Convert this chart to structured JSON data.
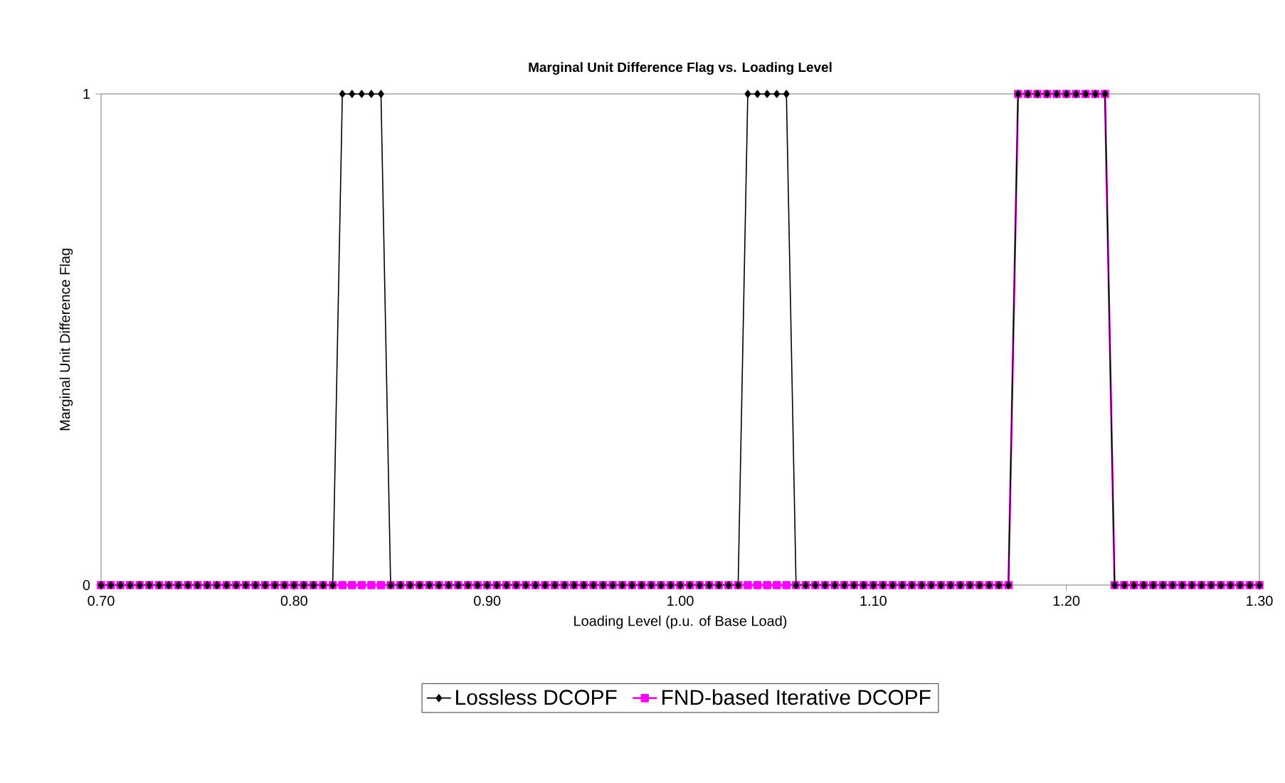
{
  "chart_data": {
    "type": "line",
    "title": "Marginal Unit Difference Flag vs. Loading Level",
    "xlabel": "Loading Level (p.u. of Base Load)",
    "ylabel": "Marginal Unit Difference Flag",
    "x": [
      0.7,
      0.705,
      0.71,
      0.715,
      0.72,
      0.725,
      0.73,
      0.735,
      0.74,
      0.745,
      0.75,
      0.755,
      0.76,
      0.765,
      0.77,
      0.775,
      0.78,
      0.785,
      0.79,
      0.795,
      0.8,
      0.805,
      0.81,
      0.815,
      0.82,
      0.825,
      0.83,
      0.835,
      0.84,
      0.845,
      0.85,
      0.855,
      0.86,
      0.865,
      0.87,
      0.875,
      0.88,
      0.885,
      0.89,
      0.895,
      0.9,
      0.905,
      0.91,
      0.915,
      0.92,
      0.925,
      0.93,
      0.935,
      0.94,
      0.945,
      0.95,
      0.955,
      0.96,
      0.965,
      0.97,
      0.975,
      0.98,
      0.985,
      0.99,
      0.995,
      1.0,
      1.005,
      1.01,
      1.015,
      1.02,
      1.025,
      1.03,
      1.035,
      1.04,
      1.045,
      1.05,
      1.055,
      1.06,
      1.065,
      1.07,
      1.075,
      1.08,
      1.085,
      1.09,
      1.095,
      1.1,
      1.105,
      1.11,
      1.115,
      1.12,
      1.125,
      1.13,
      1.135,
      1.14,
      1.145,
      1.15,
      1.155,
      1.16,
      1.165,
      1.17,
      1.175,
      1.18,
      1.185,
      1.19,
      1.195,
      1.2,
      1.205,
      1.21,
      1.215,
      1.22,
      1.225,
      1.23,
      1.235,
      1.24,
      1.245,
      1.25,
      1.255,
      1.26,
      1.265,
      1.27,
      1.275,
      1.28,
      1.285,
      1.29,
      1.295,
      1.3
    ],
    "series": [
      {
        "name": "Lossless DCOPF",
        "color": "#000000",
        "marker": "diamond",
        "values": [
          0,
          0,
          0,
          0,
          0,
          0,
          0,
          0,
          0,
          0,
          0,
          0,
          0,
          0,
          0,
          0,
          0,
          0,
          0,
          0,
          0,
          0,
          0,
          0,
          0,
          1,
          1,
          1,
          1,
          1,
          0,
          0,
          0,
          0,
          0,
          0,
          0,
          0,
          0,
          0,
          0,
          0,
          0,
          0,
          0,
          0,
          0,
          0,
          0,
          0,
          0,
          0,
          0,
          0,
          0,
          0,
          0,
          0,
          0,
          0,
          0,
          0,
          0,
          0,
          0,
          0,
          0,
          1,
          1,
          1,
          1,
          1,
          0,
          0,
          0,
          0,
          0,
          0,
          0,
          0,
          0,
          0,
          0,
          0,
          0,
          0,
          0,
          0,
          0,
          0,
          0,
          0,
          0,
          0,
          0,
          1,
          1,
          1,
          1,
          1,
          1,
          1,
          1,
          1,
          1,
          0,
          0,
          0,
          0,
          0,
          0,
          0,
          0,
          0,
          0,
          0,
          0,
          0,
          0,
          0,
          0
        ]
      },
      {
        "name": "FND-based Iterative DCOPF",
        "color": "#ff00ff",
        "marker": "square",
        "values": [
          0,
          0,
          0,
          0,
          0,
          0,
          0,
          0,
          0,
          0,
          0,
          0,
          0,
          0,
          0,
          0,
          0,
          0,
          0,
          0,
          0,
          0,
          0,
          0,
          0,
          0,
          0,
          0,
          0,
          0,
          0,
          0,
          0,
          0,
          0,
          0,
          0,
          0,
          0,
          0,
          0,
          0,
          0,
          0,
          0,
          0,
          0,
          0,
          0,
          0,
          0,
          0,
          0,
          0,
          0,
          0,
          0,
          0,
          0,
          0,
          0,
          0,
          0,
          0,
          0,
          0,
          0,
          0,
          0,
          0,
          0,
          0,
          0,
          0,
          0,
          0,
          0,
          0,
          0,
          0,
          0,
          0,
          0,
          0,
          0,
          0,
          0,
          0,
          0,
          0,
          0,
          0,
          0,
          0,
          0,
          1,
          1,
          1,
          1,
          1,
          1,
          1,
          1,
          1,
          1,
          0,
          0,
          0,
          0,
          0,
          0,
          0,
          0,
          0,
          0,
          0,
          0,
          0,
          0,
          0,
          0
        ]
      }
    ],
    "xlim": [
      0.7,
      1.3
    ],
    "xticks": [
      {
        "value": 0.7,
        "label": "0.70"
      },
      {
        "value": 0.8,
        "label": "0.80"
      },
      {
        "value": 0.9,
        "label": "0.90"
      },
      {
        "value": 1.0,
        "label": "1.00"
      },
      {
        "value": 1.1,
        "label": "1.10"
      },
      {
        "value": 1.2,
        "label": "1.20"
      },
      {
        "value": 1.3,
        "label": "1.30"
      }
    ],
    "ylim": [
      0,
      1
    ],
    "yticks": [
      0,
      1
    ],
    "legend": "bottom",
    "line_style": "solid"
  }
}
